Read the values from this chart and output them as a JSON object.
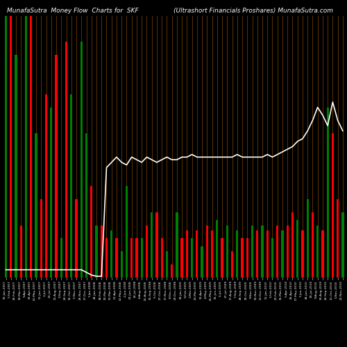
{
  "title_left": "MunafaSutra  Money Flow  Charts for  SKF",
  "title_right": "(Ultrashort Financials Proshares) MunafaSutra.com",
  "background_color": "#000000",
  "grid_color": "#6B3A00",
  "bar_colors": [
    "green",
    "red",
    "green",
    "red",
    "green",
    "red",
    "green",
    "red",
    "red",
    "green",
    "red",
    "green",
    "red",
    "green",
    "red",
    "green",
    "green",
    "red",
    "green",
    "red",
    "red",
    "green",
    "red",
    "green",
    "green",
    "red",
    "red",
    "green",
    "red",
    "green",
    "red",
    "red",
    "green",
    "red",
    "green",
    "red",
    "red",
    "green",
    "red",
    "green",
    "red",
    "red",
    "green",
    "red",
    "green",
    "red",
    "green",
    "red",
    "red",
    "green",
    "red",
    "green",
    "red",
    "green",
    "red",
    "green",
    "red",
    "red",
    "green",
    "red",
    "green",
    "red",
    "green",
    "red",
    "green",
    "red",
    "red",
    "green"
  ],
  "bar_heights": [
    100,
    100,
    85,
    20,
    100,
    100,
    55,
    30,
    70,
    65,
    85,
    15,
    90,
    70,
    30,
    90,
    55,
    35,
    20,
    20,
    15,
    18,
    15,
    10,
    35,
    15,
    15,
    15,
    20,
    25,
    25,
    15,
    10,
    5,
    25,
    15,
    18,
    15,
    18,
    12,
    20,
    18,
    22,
    15,
    20,
    10,
    18,
    15,
    15,
    20,
    18,
    20,
    18,
    15,
    20,
    18,
    20,
    25,
    22,
    18,
    30,
    25,
    20,
    18,
    65,
    55,
    30,
    25
  ],
  "line_y": [
    3,
    3,
    3,
    3,
    3,
    3,
    3,
    3,
    3,
    3,
    3,
    3,
    3,
    3,
    3,
    3,
    2,
    1,
    0.5,
    0.5,
    42,
    44,
    46,
    44,
    43,
    46,
    45,
    44,
    46,
    45,
    44,
    45,
    46,
    45,
    45,
    46,
    46,
    47,
    46,
    46,
    46,
    46,
    46,
    46,
    46,
    46,
    47,
    46,
    46,
    46,
    46,
    46,
    47,
    46,
    47,
    48,
    49,
    50,
    52,
    53,
    56,
    60,
    65,
    62,
    58,
    67,
    60,
    56
  ],
  "xlabels": [
    "15-Jan-2007",
    "5-Feb-2007",
    "26-Feb-2007",
    "19-Mar-2007",
    "9-Apr-2007",
    "30-Apr-2007",
    "21-May-2007",
    "11-Jun-2007",
    "2-Jul-2007",
    "23-Jul-2007",
    "13-Aug-2007",
    "3-Sep-2007",
    "24-Sep-2007",
    "15-Oct-2007",
    "5-Nov-2007",
    "26-Nov-2007",
    "17-Dec-2007",
    "7-Jan-2008",
    "28-Jan-2008",
    "18-Feb-2008",
    "10-Mar-2008",
    "31-Mar-2008",
    "21-Apr-2008",
    "12-May-2008",
    "2-Jun-2008",
    "23-Jun-2008",
    "14-Jul-2008",
    "4-Aug-2008",
    "25-Aug-2008",
    "15-Sep-2008",
    "6-Oct-2008",
    "27-Oct-2008",
    "17-Nov-2008",
    "8-Dec-2008",
    "29-Dec-2008",
    "19-Jan-2009",
    "9-Feb-2009",
    "2-Mar-2009",
    "23-Mar-2009",
    "13-Apr-2009",
    "4-May-2009",
    "25-May-2009",
    "15-Jun-2009",
    "6-Jul-2009",
    "27-Jul-2009",
    "17-Aug-2009",
    "7-Sep-2009",
    "28-Sep-2009",
    "19-Oct-2009",
    "9-Nov-2009",
    "30-Nov-2009",
    "21-Dec-2009",
    "11-Jan-2010",
    "1-Feb-2010",
    "22-Feb-2010",
    "15-Mar-2010",
    "5-Apr-2010",
    "26-Apr-2010",
    "17-May-2010",
    "7-Jun-2010",
    "28-Jun-2010",
    "19-Jul-2010",
    "9-Aug-2010",
    "30-Aug-2010",
    "20-Sep-2010",
    "11-Oct-2010",
    "1-Nov-2010",
    "22-Nov-2010"
  ],
  "n_bars": 68,
  "ylim_max": 100
}
